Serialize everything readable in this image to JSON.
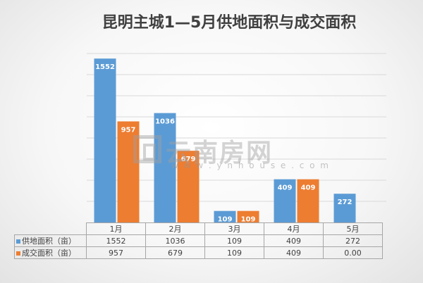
{
  "chart_data": {
    "type": "bar",
    "title": "昆明主城1—5月供地面积与成交面积",
    "categories": [
      "1月",
      "2月",
      "3月",
      "4月",
      "5月"
    ],
    "series": [
      {
        "name": "供地面积（亩）",
        "values": [
          1552,
          1036,
          109,
          409,
          272
        ],
        "color": "#5b9bd5",
        "labels": [
          "1552",
          "1036",
          "109",
          "409",
          "272"
        ],
        "table": [
          "1552",
          "1036",
          "109",
          "409",
          "272"
        ]
      },
      {
        "name": "成交面积（亩）",
        "values": [
          957,
          679,
          109,
          409,
          0
        ],
        "color": "#ed7d31",
        "labels": [
          "957",
          "679",
          "109",
          "409",
          ""
        ],
        "table": [
          "957",
          "679",
          "109",
          "409",
          "0.00"
        ]
      }
    ],
    "ylim": [
      0,
      1600
    ],
    "grid": true,
    "legend": "bottom-left (data table)"
  },
  "watermark": {
    "text": "云南房网",
    "url": "w w w . y n h o u s e . c o m"
  }
}
